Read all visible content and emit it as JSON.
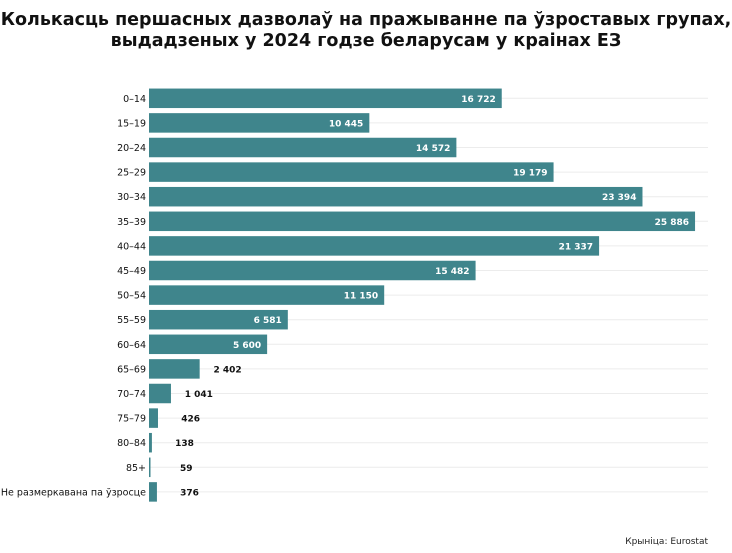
{
  "chart_data": {
    "type": "bar",
    "orientation": "horizontal",
    "title_lines": [
      "Колькасць першасных дазволаў на пражыванне па ўзроставых групах,",
      "выдадзеных у 2024 годзе беларусам у краінах ЕЗ"
    ],
    "categories": [
      "0–14",
      "15–19",
      "20–24",
      "25–29",
      "30–34",
      "35–39",
      "40–44",
      "45–49",
      "50–54",
      "55–59",
      "60–64",
      "65–69",
      "70–74",
      "75–79",
      "80–84",
      "85+",
      "Не размеркавана па ўзросце"
    ],
    "values": [
      16722,
      10445,
      14572,
      19179,
      23394,
      25886,
      21337,
      15482,
      11150,
      6581,
      5600,
      2402,
      1041,
      426,
      138,
      59,
      376
    ],
    "value_labels": [
      "16 722",
      "10 445",
      "14 572",
      "19 179",
      "23 394",
      "25 886",
      "21 337",
      "15 482",
      "11 150",
      "6 581",
      "5 600",
      "2 402",
      "1 041",
      "426",
      "138",
      "59",
      "376"
    ],
    "xlim": [
      0,
      26500
    ],
    "grid": true,
    "bar_color": "#3f858c",
    "inside_label_color": "#ffffff",
    "outside_label_color": "#111111",
    "source": "Крыніца: Eurostat"
  }
}
